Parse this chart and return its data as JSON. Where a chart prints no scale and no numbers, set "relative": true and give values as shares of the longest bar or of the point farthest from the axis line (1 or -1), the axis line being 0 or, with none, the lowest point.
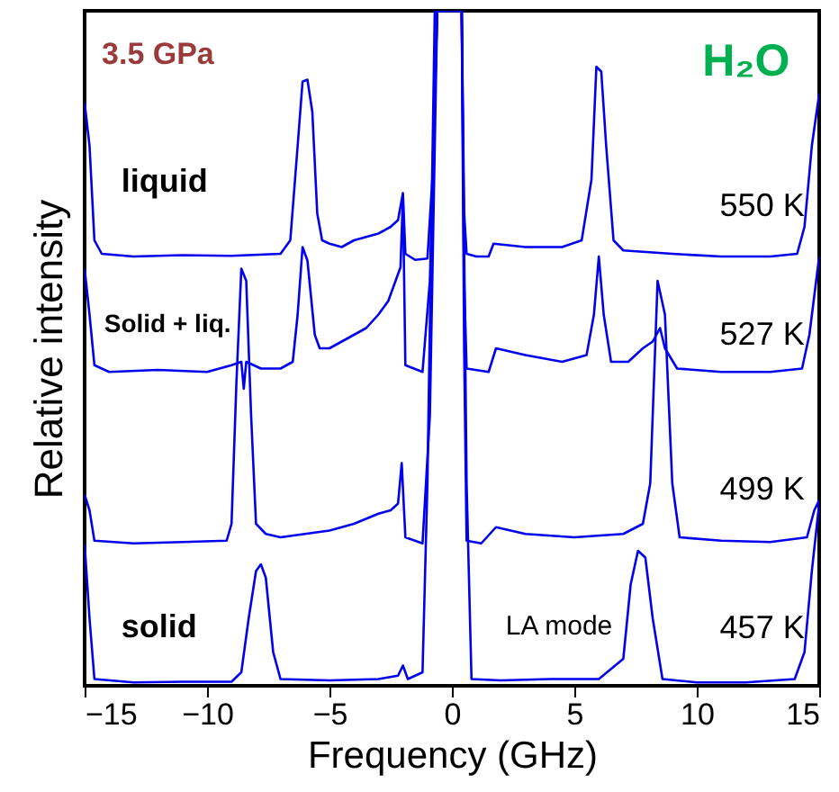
{
  "chart_data": {
    "type": "line",
    "relative": true,
    "xlabel": "Frequency (GHz)",
    "ylabel": "Relative intensity",
    "xlim": [
      -15,
      15
    ],
    "xticks": [
      -15,
      -10,
      -5,
      0,
      5,
      10,
      15
    ],
    "grid": false,
    "marker": "none",
    "line_style": "solid",
    "annotations": [
      "3.5 GPa",
      "H₂O",
      "liquid",
      "Solid + liq.",
      "solid",
      "LA mode"
    ],
    "series": [
      {
        "name": "550 K",
        "color": "#0000ee",
        "x": [
          -15,
          -14.8,
          -14.6,
          -14.3,
          -13,
          -11,
          -9,
          -7,
          -6.6,
          -6.3,
          -6.1,
          -5.9,
          -5.7,
          -5.5,
          -5.3,
          -5,
          -4.5,
          -4,
          -3.5,
          -3,
          -2.5,
          -2.2,
          -2.0,
          -1.9,
          -1.5,
          -1.0,
          -0.8,
          -0.6,
          0.4,
          0.5,
          0.6,
          1.0,
          1.5,
          1.7,
          3,
          4.5,
          5.3,
          5.7,
          5.9,
          6.1,
          6.3,
          6.6,
          7,
          9,
          11,
          13,
          14.1,
          14.4,
          14.7,
          15
        ],
        "values": [
          0.864,
          0.8,
          0.66,
          0.64,
          0.636,
          0.638,
          0.637,
          0.64,
          0.66,
          0.8,
          0.895,
          0.898,
          0.85,
          0.7,
          0.66,
          0.655,
          0.65,
          0.66,
          0.665,
          0.67,
          0.68,
          0.69,
          0.73,
          0.64,
          0.631,
          0.633,
          0.75,
          1,
          1,
          0.7,
          0.64,
          0.636,
          0.636,
          0.655,
          0.65,
          0.65,
          0.66,
          0.75,
          0.917,
          0.91,
          0.8,
          0.66,
          0.645,
          0.64,
          0.636,
          0.636,
          0.64,
          0.68,
          0.8,
          0.877
        ]
      },
      {
        "name": "527 K",
        "color": "#0000ee",
        "x": [
          -15,
          -14.8,
          -14.6,
          -14,
          -12,
          -10,
          -9,
          -8.6,
          -8.5,
          -8.4,
          -7.8,
          -7,
          -6.5,
          -6.3,
          -6.1,
          -5.9,
          -5.6,
          -5.4,
          -5,
          -4.5,
          -4,
          -3.5,
          -3,
          -2.6,
          -2.3,
          -2.1,
          -2.0,
          -1.9,
          -1.2,
          -0.9,
          -0.6,
          0.4,
          0.5,
          0.6,
          1.5,
          1.8,
          3,
          4.5,
          5.5,
          5.8,
          6.0,
          6.2,
          6.5,
          7.2,
          7.8,
          8.2,
          8.5,
          8.7,
          9.2,
          11,
          13,
          14.3,
          14.6,
          15
        ],
        "values": [
          0.618,
          0.55,
          0.475,
          0.465,
          0.468,
          0.465,
          0.475,
          0.48,
          0.44,
          0.48,
          0.47,
          0.47,
          0.48,
          0.55,
          0.65,
          0.63,
          0.52,
          0.5,
          0.5,
          0.51,
          0.52,
          0.53,
          0.55,
          0.57,
          0.6,
          0.62,
          0.725,
          0.475,
          0.465,
          0.6,
          1,
          1,
          0.6,
          0.47,
          0.465,
          0.5,
          0.49,
          0.48,
          0.49,
          0.55,
          0.636,
          0.55,
          0.48,
          0.48,
          0.5,
          0.51,
          0.53,
          0.5,
          0.47,
          0.465,
          0.465,
          0.47,
          0.52,
          0.636
        ]
      },
      {
        "name": "499 K",
        "color": "#0000ee",
        "x": [
          -15,
          -14.8,
          -14.6,
          -13,
          -11,
          -9.2,
          -9.0,
          -8.8,
          -8.6,
          -8.4,
          -8.2,
          -8.0,
          -7.6,
          -7,
          -6,
          -5,
          -4,
          -3,
          -2.5,
          -2.2,
          -2.05,
          -1.9,
          -1.2,
          -0.9,
          -0.6,
          0.4,
          0.5,
          0.6,
          1.2,
          1.8,
          3,
          5,
          7,
          7.8,
          8.1,
          8.4,
          8.7,
          9.0,
          9.3,
          11,
          13,
          14.5,
          14.8,
          15
        ],
        "values": [
          0.283,
          0.26,
          0.215,
          0.211,
          0.213,
          0.215,
          0.24,
          0.45,
          0.618,
          0.6,
          0.4,
          0.24,
          0.225,
          0.22,
          0.225,
          0.23,
          0.24,
          0.255,
          0.26,
          0.27,
          0.33,
          0.22,
          0.211,
          0.4,
          1,
          1,
          0.5,
          0.215,
          0.211,
          0.235,
          0.225,
          0.22,
          0.225,
          0.24,
          0.3,
          0.6,
          0.55,
          0.3,
          0.22,
          0.215,
          0.213,
          0.22,
          0.26,
          0.275
        ]
      },
      {
        "name": "457 K",
        "color": "#0000ee",
        "x": [
          -15,
          -14.8,
          -14.6,
          -13,
          -11,
          -9,
          -8.6,
          -8.3,
          -8.0,
          -7.8,
          -7.6,
          -7.3,
          -7.0,
          -5,
          -3,
          -2.2,
          -2.0,
          -1.8,
          -1.2,
          -1.0,
          -0.7,
          0.4,
          0.6,
          0.8,
          2,
          4,
          6,
          7.0,
          7.3,
          7.6,
          7.9,
          8.2,
          8.6,
          10,
          12,
          14,
          14.4,
          14.7,
          15
        ],
        "values": [
          0.21,
          0.1,
          0.01,
          0.005,
          0.006,
          0.006,
          0.02,
          0.1,
          0.17,
          0.18,
          0.16,
          0.05,
          0.01,
          0.008,
          0.01,
          0.015,
          0.03,
          0.01,
          0.02,
          0.3,
          1,
          1,
          0.3,
          0.01,
          0.008,
          0.01,
          0.01,
          0.04,
          0.15,
          0.2,
          0.19,
          0.1,
          0.01,
          0.005,
          0.005,
          0.01,
          0.05,
          0.17,
          0.27
        ]
      }
    ]
  }
}
